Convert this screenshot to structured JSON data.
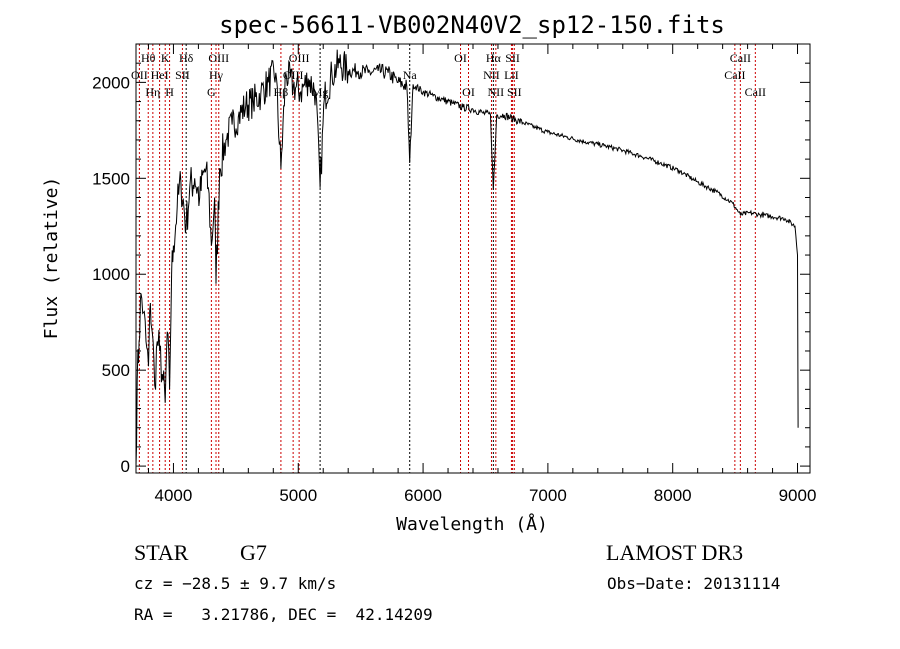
{
  "chart_data": {
    "type": "line",
    "title": "spec-56611-VB002N40V2_sp12-150.fits",
    "xlabel": "Wavelength (Å)",
    "ylabel": "Flux (relative)",
    "xlim": [
      3700,
      9100
    ],
    "ylim": [
      -36,
      2200
    ],
    "xticks": [
      4000,
      5000,
      6000,
      7000,
      8000,
      9000
    ],
    "yticks": [
      0,
      500,
      1000,
      1500,
      2000
    ],
    "grid": false,
    "series": [
      {
        "name": "spectrum",
        "color": "#000000",
        "points": [
          [
            3700,
            0
          ],
          [
            3710,
            450
          ],
          [
            3725,
            650
          ],
          [
            3740,
            900
          ],
          [
            3760,
            800
          ],
          [
            3780,
            650
          ],
          [
            3800,
            520
          ],
          [
            3815,
            850
          ],
          [
            3830,
            700
          ],
          [
            3850,
            420
          ],
          [
            3870,
            650
          ],
          [
            3890,
            600
          ],
          [
            3910,
            480
          ],
          [
            3934,
            330
          ],
          [
            3950,
            700
          ],
          [
            3969,
            400
          ],
          [
            3985,
            1000
          ],
          [
            4000,
            1150
          ],
          [
            4030,
            1350
          ],
          [
            4060,
            1480
          ],
          [
            4102,
            1250
          ],
          [
            4130,
            1450
          ],
          [
            4170,
            1500
          ],
          [
            4210,
            1400
          ],
          [
            4250,
            1550
          ],
          [
            4280,
            1450
          ],
          [
            4304,
            1150
          ],
          [
            4330,
            1400
          ],
          [
            4341,
            950
          ],
          [
            4370,
            1550
          ],
          [
            4420,
            1700
          ],
          [
            4470,
            1780
          ],
          [
            4520,
            1820
          ],
          [
            4580,
            1880
          ],
          [
            4640,
            1900
          ],
          [
            4700,
            1940
          ],
          [
            4760,
            2000
          ],
          [
            4820,
            2050
          ],
          [
            4861,
            1550
          ],
          [
            4900,
            2050
          ],
          [
            4960,
            1980
          ],
          [
            5020,
            1950
          ],
          [
            5080,
            2020
          ],
          [
            5140,
            1950
          ],
          [
            5175,
            1450
          ],
          [
            5210,
            1920
          ],
          [
            5270,
            2040
          ],
          [
            5330,
            2100
          ],
          [
            5400,
            2060
          ],
          [
            5480,
            2060
          ],
          [
            5560,
            2050
          ],
          [
            5640,
            2060
          ],
          [
            5720,
            2050
          ],
          [
            5800,
            2000
          ],
          [
            5870,
            1980
          ],
          [
            5893,
            1580
          ],
          [
            5920,
            1990
          ],
          [
            6000,
            1950
          ],
          [
            6080,
            1930
          ],
          [
            6160,
            1910
          ],
          [
            6240,
            1890
          ],
          [
            6320,
            1870
          ],
          [
            6400,
            1860
          ],
          [
            6480,
            1840
          ],
          [
            6540,
            1830
          ],
          [
            6563,
            1440
          ],
          [
            6590,
            1830
          ],
          [
            6650,
            1830
          ],
          [
            6720,
            1810
          ],
          [
            6800,
            1790
          ],
          [
            6900,
            1765
          ],
          [
            7000,
            1740
          ],
          [
            7150,
            1715
          ],
          [
            7300,
            1690
          ],
          [
            7450,
            1670
          ],
          [
            7600,
            1645
          ],
          [
            7750,
            1615
          ],
          [
            7900,
            1580
          ],
          [
            8050,
            1540
          ],
          [
            8200,
            1480
          ],
          [
            8350,
            1430
          ],
          [
            8480,
            1370
          ],
          [
            8542,
            1310
          ],
          [
            8620,
            1320
          ],
          [
            8700,
            1310
          ],
          [
            8800,
            1300
          ],
          [
            8900,
            1290
          ],
          [
            8980,
            1250
          ],
          [
            9000,
            1100
          ],
          [
            9005,
            200
          ]
        ]
      }
    ],
    "lines": [
      {
        "label": "OII",
        "wl": 3727,
        "row": 1,
        "color": "#cc0000"
      },
      {
        "label": "Hθ",
        "wl": 3798,
        "row": 0,
        "color": "#cc0000"
      },
      {
        "label": "Hη",
        "wl": 3835,
        "row": 2,
        "color": "#cc0000"
      },
      {
        "label": "HeI",
        "wl": 3889,
        "row": 1,
        "color": "#cc0000"
      },
      {
        "label": "K",
        "wl": 3934,
        "row": 0,
        "color": "#cc0000"
      },
      {
        "label": "H",
        "wl": 3969,
        "row": 2,
        "color": "#cc0000"
      },
      {
        "label": "SII",
        "wl": 4072,
        "row": 1,
        "color": "#cc0000"
      },
      {
        "label": "Hδ",
        "wl": 4102,
        "row": 0,
        "color": "#000000"
      },
      {
        "label": "G",
        "wl": 4304,
        "row": 2,
        "color": "#cc0000"
      },
      {
        "label": "Hγ",
        "wl": 4341,
        "row": 1,
        "color": "#cc0000"
      },
      {
        "label": "OIII",
        "wl": 4363,
        "row": 0,
        "color": "#cc0000"
      },
      {
        "label": "Hβ",
        "wl": 4861,
        "row": 2,
        "color": "#cc0000"
      },
      {
        "label": "OIII",
        "wl": 4959,
        "row": 1,
        "color": "#cc0000"
      },
      {
        "label": "OIII",
        "wl": 5007,
        "row": 0,
        "color": "#cc0000"
      },
      {
        "label": "Mg",
        "wl": 5175,
        "row": 2,
        "color": "#000000"
      },
      {
        "label": "Na",
        "wl": 5893,
        "row": 1,
        "color": "#000000"
      },
      {
        "label": "OI",
        "wl": 6300,
        "row": 0,
        "color": "#cc0000"
      },
      {
        "label": "OI",
        "wl": 6364,
        "row": 2,
        "color": "#cc0000"
      },
      {
        "label": "NII",
        "wl": 6548,
        "row": 1,
        "color": "#cc0000"
      },
      {
        "label": "Hα",
        "wl": 6563,
        "row": 0,
        "color": "#000000"
      },
      {
        "label": "NII",
        "wl": 6583,
        "row": 2,
        "color": "#cc0000"
      },
      {
        "label": "LiI",
        "wl": 6708,
        "row": 1,
        "color": "#cc0000"
      },
      {
        "label": "SII",
        "wl": 6717,
        "row": 0,
        "color": "#cc0000"
      },
      {
        "label": "SII",
        "wl": 6731,
        "row": 2,
        "color": "#cc0000"
      },
      {
        "label": "CaII",
        "wl": 8498,
        "row": 1,
        "color": "#cc0000"
      },
      {
        "label": "CaII",
        "wl": 8542,
        "row": 0,
        "color": "#cc0000"
      },
      {
        "label": "CaII",
        "wl": 8662,
        "row": 2,
        "color": "#cc0000"
      }
    ]
  },
  "info": {
    "object_class": "STAR",
    "subclass": "G7",
    "survey": "LAMOST DR3",
    "cz": "cz = −28.5 ± 9.7 km/s",
    "obs_date": "Obs−Date: 20131114",
    "coords": "RA =   3.21786, DEC =  42.14209"
  }
}
